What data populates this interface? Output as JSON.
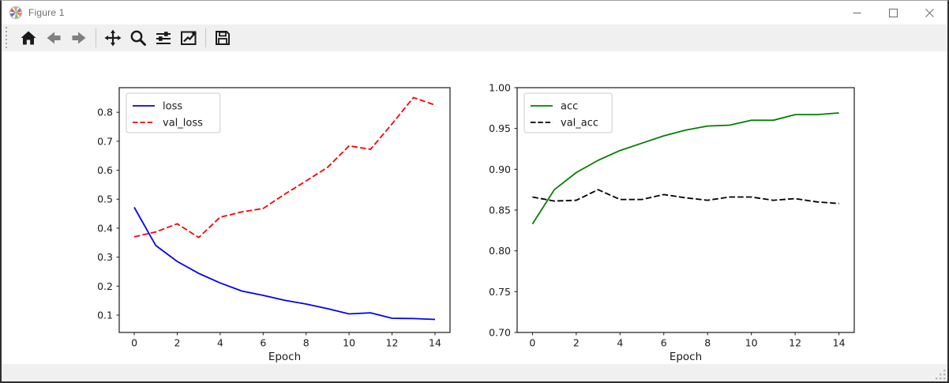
{
  "window": {
    "title": "Figure 1",
    "controls": {
      "minimize": "minimize",
      "maximize": "maximize",
      "close": "close"
    }
  },
  "toolbar": {
    "buttons": [
      {
        "name": "home",
        "enabled": true
      },
      {
        "name": "back",
        "enabled": false
      },
      {
        "name": "forward",
        "enabled": false
      },
      {
        "name": "pan",
        "enabled": true
      },
      {
        "name": "zoom",
        "enabled": true
      },
      {
        "name": "configure-subplots",
        "enabled": true
      },
      {
        "name": "edit-axes",
        "enabled": true
      },
      {
        "name": "save",
        "enabled": true
      }
    ]
  },
  "statusbar": {
    "message": ""
  },
  "theme": {
    "titlebar_bg": "#ffffff",
    "toolbar_bg": "#f0f0f0",
    "window_border": "#2f2f2f",
    "icon_color": "#1a1a1a",
    "disabled_icon_color": "#7f7f7f",
    "loss_color": "#0000ff",
    "val_loss_color": "#ff0000",
    "acc_color": "#008000",
    "val_acc_color": "#000000"
  },
  "chart_data": [
    {
      "type": "line",
      "name": "loss-plot",
      "title": "",
      "xlabel": "Epoch",
      "ylabel": "",
      "x": [
        0,
        1,
        2,
        3,
        4,
        5,
        6,
        7,
        8,
        9,
        10,
        11,
        12,
        13,
        14
      ],
      "xlim": [
        -0.7,
        14.7
      ],
      "ylim": [
        0.04,
        0.885
      ],
      "xticks": [
        0,
        2,
        4,
        6,
        8,
        10,
        12,
        14
      ],
      "xtick_labels": [
        "0",
        "2",
        "4",
        "6",
        "8",
        "10",
        "12",
        "14"
      ],
      "yticks": [
        0.1,
        0.2,
        0.3,
        0.4,
        0.5,
        0.6,
        0.7,
        0.8
      ],
      "ytick_labels": [
        "0.1",
        "0.2",
        "0.3",
        "0.4",
        "0.5",
        "0.6",
        "0.7",
        "0.8"
      ],
      "grid": false,
      "legend_position": "upper left",
      "series": [
        {
          "name": "loss",
          "color": "#0000ff",
          "style": "solid",
          "values": [
            0.472,
            0.34,
            0.285,
            0.244,
            0.211,
            0.183,
            0.168,
            0.151,
            0.138,
            0.122,
            0.104,
            0.108,
            0.089,
            0.088,
            0.085
          ]
        },
        {
          "name": "val_loss",
          "color": "#ff0000",
          "style": "dashed",
          "values": [
            0.37,
            0.387,
            0.415,
            0.368,
            0.438,
            0.456,
            0.468,
            0.517,
            0.563,
            0.61,
            0.684,
            0.672,
            0.76,
            0.851,
            0.825
          ]
        }
      ]
    },
    {
      "type": "line",
      "name": "accuracy-plot",
      "title": "",
      "xlabel": "Epoch",
      "ylabel": "",
      "x": [
        0,
        1,
        2,
        3,
        4,
        5,
        6,
        7,
        8,
        9,
        10,
        11,
        12,
        13,
        14
      ],
      "xlim": [
        -0.7,
        14.7
      ],
      "ylim": [
        0.7,
        1.0
      ],
      "xticks": [
        0,
        2,
        4,
        6,
        8,
        10,
        12,
        14
      ],
      "xtick_labels": [
        "0",
        "2",
        "4",
        "6",
        "8",
        "10",
        "12",
        "14"
      ],
      "yticks": [
        0.7,
        0.75,
        0.8,
        0.85,
        0.9,
        0.95,
        1.0
      ],
      "ytick_labels": [
        "0.70",
        "0.75",
        "0.80",
        "0.85",
        "0.90",
        "0.95",
        "1.00"
      ],
      "grid": false,
      "legend_position": "upper left",
      "series": [
        {
          "name": "acc",
          "color": "#008000",
          "style": "solid",
          "values": [
            0.833,
            0.875,
            0.896,
            0.911,
            0.923,
            0.932,
            0.941,
            0.948,
            0.953,
            0.954,
            0.96,
            0.96,
            0.967,
            0.967,
            0.969
          ]
        },
        {
          "name": "val_acc",
          "color": "#000000",
          "style": "dashed",
          "values": [
            0.866,
            0.861,
            0.862,
            0.875,
            0.863,
            0.863,
            0.869,
            0.865,
            0.862,
            0.866,
            0.866,
            0.862,
            0.864,
            0.86,
            0.858
          ]
        }
      ]
    }
  ]
}
